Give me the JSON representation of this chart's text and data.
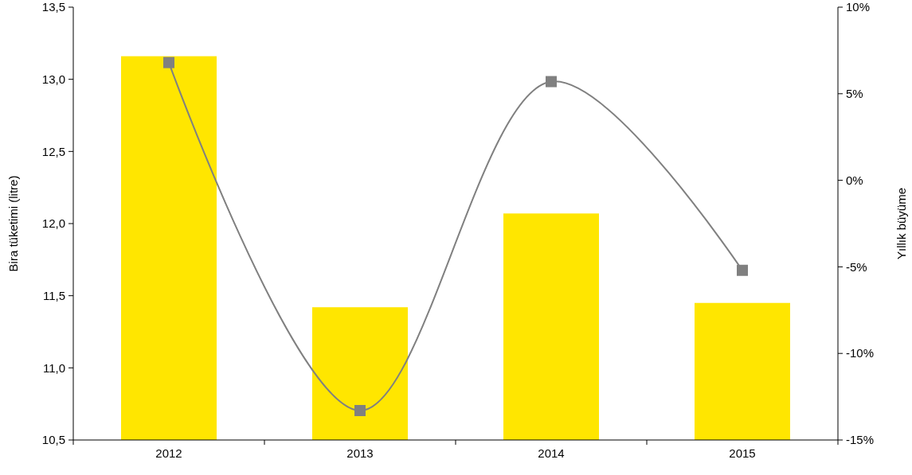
{
  "chart_data": {
    "type": "bar",
    "ylabel": "Bira tüketimi (litre)",
    "y2label": "Yıllık büyüme",
    "categories": [
      "2012",
      "2013",
      "2014",
      "2015"
    ],
    "series": [
      {
        "color": "#ffe600",
        "values": [
          13.16,
          11.42,
          12.07,
          11.45
        ]
      },
      {
        "type": "line",
        "axis": "y2",
        "color": "#808080",
        "marker": "square",
        "values": [
          6.8,
          -13.3,
          5.7,
          -5.2
        ]
      }
    ],
    "ylim": [
      10.5,
      13.5
    ],
    "yticks": [
      {
        "value": 10.5,
        "label": "10,5"
      },
      {
        "value": 11,
        "label": "11,0"
      },
      {
        "value": 11.5,
        "label": "11,5"
      },
      {
        "value": 12,
        "label": "12,0"
      },
      {
        "value": 12.5,
        "label": "12,5"
      },
      {
        "value": 13,
        "label": "13,0"
      },
      {
        "value": 13.5,
        "label": "13,5"
      }
    ],
    "y2lim": [
      -15,
      10
    ],
    "y2ticks": [
      {
        "value": -15,
        "label": "-15%"
      },
      {
        "value": -10,
        "label": "-10%"
      },
      {
        "value": -5,
        "label": "-5%"
      },
      {
        "value": 0,
        "label": "0%"
      },
      {
        "value": 5,
        "label": "5%"
      },
      {
        "value": 10,
        "label": "10%"
      }
    ],
    "grid": false
  }
}
